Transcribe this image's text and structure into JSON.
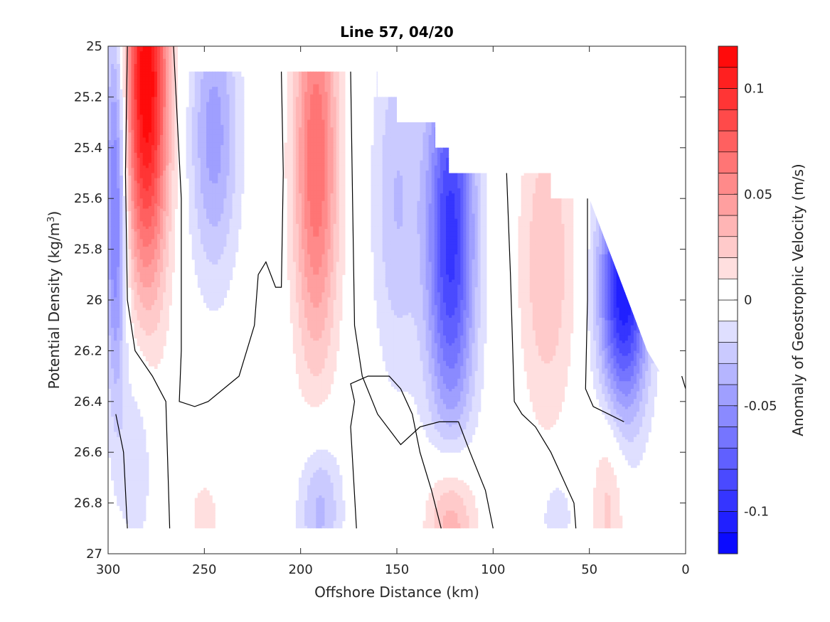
{
  "chart_data": {
    "type": "contour",
    "title": "Line 57, 04/20",
    "xlabel": "Offshore Distance (km)",
    "ylabel_main": "Potential Density (kg/m",
    "ylabel_sup": "3",
    "ylabel_close": ")",
    "xlim": [
      300,
      0
    ],
    "ylim": [
      25,
      27
    ],
    "x_reversed": true,
    "y_reversed": true,
    "x_ticks": [
      300,
      250,
      200,
      150,
      100,
      50,
      0
    ],
    "y_ticks": [
      25,
      25.2,
      25.4,
      25.6,
      25.8,
      26,
      26.2,
      26.4,
      26.6,
      26.8,
      27
    ],
    "colorbar": {
      "label": "Anomaly of Geostrophic Velocity (m/s)",
      "range": [
        -0.12,
        0.12
      ],
      "levels": [
        -0.12,
        -0.11,
        -0.1,
        -0.09,
        -0.08,
        -0.07,
        -0.06,
        -0.05,
        -0.04,
        -0.03,
        -0.02,
        -0.01,
        0,
        0.01,
        0.02,
        0.03,
        0.04,
        0.05,
        0.06,
        0.07,
        0.08,
        0.09,
        0.1,
        0.11,
        0.12
      ],
      "ticks": [
        -0.1,
        -0.05,
        0,
        0.05,
        0.1
      ],
      "tick_labels": [
        "-0.1",
        "-0.05",
        "0",
        "0.05",
        "0.1"
      ]
    },
    "colormap": "blue-white-red",
    "surface_density_boundary": [
      [
        300,
        25.0
      ],
      [
        262,
        25.0
      ],
      [
        262,
        25.1
      ],
      [
        160,
        25.1
      ],
      [
        160,
        25.2
      ],
      [
        150,
        25.2
      ],
      [
        150,
        25.3
      ],
      [
        130,
        25.3
      ],
      [
        130,
        25.4
      ],
      [
        123,
        25.4
      ],
      [
        123,
        25.5
      ],
      [
        70,
        25.5
      ],
      [
        70,
        25.6
      ],
      [
        50,
        25.6
      ],
      [
        20,
        26.2
      ],
      [
        12,
        26.3
      ],
      [
        2,
        26.3
      ],
      [
        0,
        26.35
      ]
    ],
    "bottom_boundary_density": 26.9,
    "velocity_features": [
      {
        "x": 280,
        "y": 25.15,
        "sx": 8,
        "sy": 0.55,
        "value": 0.12
      },
      {
        "x": 296,
        "y": 25.6,
        "sx": 4,
        "sy": 0.55,
        "value": -0.07
      },
      {
        "x": 285,
        "y": 26.6,
        "sx": 6,
        "sy": 0.3,
        "value": -0.02
      },
      {
        "x": 245,
        "y": 25.35,
        "sx": 9,
        "sy": 0.4,
        "value": -0.045
      },
      {
        "x": 192,
        "y": 25.45,
        "sx": 8,
        "sy": 0.55,
        "value": 0.07
      },
      {
        "x": 150,
        "y": 25.6,
        "sx": 9,
        "sy": 0.5,
        "value": -0.03
      },
      {
        "x": 122,
        "y": 25.75,
        "sx": 9,
        "sy": 0.55,
        "value": -0.095
      },
      {
        "x": 72,
        "y": 25.85,
        "sx": 10,
        "sy": 0.45,
        "value": 0.03
      },
      {
        "x": 32,
        "y": 25.95,
        "sx": 9,
        "sy": 0.35,
        "value": -0.11
      },
      {
        "x": 190,
        "y": 26.82,
        "sx": 8,
        "sy": 0.2,
        "value": -0.035
      },
      {
        "x": 122,
        "y": 26.87,
        "sx": 9,
        "sy": 0.2,
        "value": 0.045
      },
      {
        "x": 40,
        "y": 26.78,
        "sx": 6,
        "sy": 0.25,
        "value": 0.025
      },
      {
        "x": 250,
        "y": 26.85,
        "sx": 6,
        "sy": 0.12,
        "value": 0.015
      },
      {
        "x": 67,
        "y": 26.85,
        "sx": 6,
        "sy": 0.12,
        "value": -0.02
      }
    ],
    "zero_contours": [
      [
        [
          290,
          25.0
        ],
        [
          291,
          25.5
        ],
        [
          290,
          26.0
        ],
        [
          286,
          26.2
        ],
        [
          277,
          26.3
        ],
        [
          270,
          26.4
        ],
        [
          268,
          26.9
        ]
      ],
      [
        [
          266,
          25.0
        ],
        [
          262,
          25.6
        ],
        [
          262,
          26.2
        ],
        [
          263,
          26.4
        ],
        [
          255,
          26.42
        ],
        [
          248,
          26.4
        ],
        [
          232,
          26.3
        ],
        [
          228,
          26.2
        ],
        [
          224,
          26.1
        ],
        [
          222,
          25.9
        ],
        [
          218,
          25.85
        ],
        [
          213,
          25.95
        ],
        [
          210,
          25.95
        ],
        [
          209,
          25.5
        ],
        [
          210,
          25.1
        ]
      ],
      [
        [
          174,
          25.1
        ],
        [
          173,
          25.6
        ],
        [
          172,
          26.1
        ],
        [
          168,
          26.3
        ],
        [
          160,
          26.45
        ],
        [
          148,
          26.57
        ],
        [
          138,
          26.5
        ],
        [
          128,
          26.48
        ],
        [
          118,
          26.48
        ],
        [
          112,
          26.6
        ],
        [
          104,
          26.75
        ],
        [
          100,
          26.9
        ]
      ],
      [
        [
          171,
          26.9
        ],
        [
          174,
          26.5
        ],
        [
          172,
          26.4
        ],
        [
          174,
          26.33
        ],
        [
          165,
          26.3
        ],
        [
          154,
          26.3
        ],
        [
          148,
          26.35
        ],
        [
          142,
          26.45
        ],
        [
          138,
          26.6
        ],
        [
          132,
          26.75
        ],
        [
          127,
          26.9
        ]
      ],
      [
        [
          93,
          25.5
        ],
        [
          91,
          25.9
        ],
        [
          89,
          26.4
        ],
        [
          85,
          26.45
        ],
        [
          78,
          26.5
        ],
        [
          70,
          26.6
        ],
        [
          64,
          26.7
        ],
        [
          58,
          26.8
        ],
        [
          57,
          26.9
        ]
      ],
      [
        [
          51,
          25.6
        ],
        [
          51,
          26.0
        ],
        [
          52,
          26.35
        ],
        [
          48,
          26.42
        ],
        [
          40,
          26.45
        ],
        [
          32,
          26.48
        ]
      ],
      [
        [
          296,
          26.45
        ],
        [
          292,
          26.6
        ],
        [
          290,
          26.9
        ]
      ],
      [
        [
          2,
          26.3
        ],
        [
          0,
          26.35
        ]
      ]
    ]
  }
}
